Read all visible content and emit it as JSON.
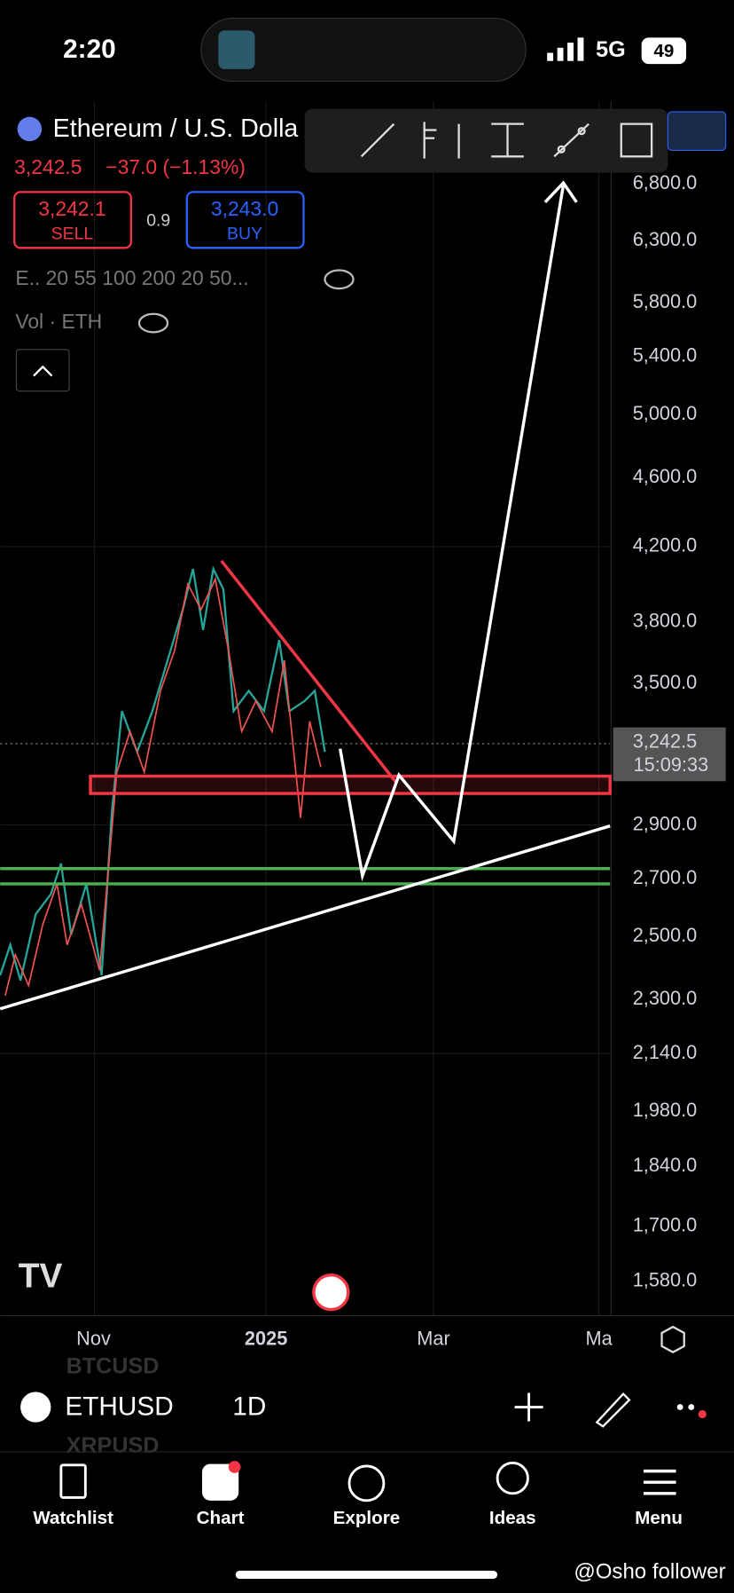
{
  "status": {
    "time": "2:20",
    "network": "5G",
    "battery": "49"
  },
  "header": {
    "title": "Ethereum / U.S. Dolla",
    "price": "3,242.5",
    "change": "−37.0 (−1.13%)",
    "sell_price": "3,242.1",
    "sell": "SELL",
    "spread": "0.9",
    "buy_price": "3,243.0",
    "buy": "BUY",
    "indicators": "E.. 20 55 100 200 20 50...",
    "volume": "Vol · ETH"
  },
  "price_axis": [
    "6,800.0",
    "6,300.0",
    "5,800.0",
    "5,400.0",
    "5,000.0",
    "4,600.0",
    "4,200.0",
    "3,800.0",
    "3,500.0",
    "2,900.0",
    "2,700.0",
    "2,500.0",
    "2,300.0",
    "2,140.0",
    "1,980.0",
    "1,840.0",
    "1,700.0",
    "1,580.0"
  ],
  "current": {
    "price": "3,242.5",
    "countdown": "15:09:33"
  },
  "time_axis": [
    "Nov",
    "2025",
    "Mar",
    "Ma"
  ],
  "symbol_bar": {
    "symbol": "ETHUSD",
    "interval": "1D",
    "ghost_above": "BTCUSD",
    "ghost_below": "XRPUSD"
  },
  "nav": [
    "Watchlist",
    "Chart",
    "Explore",
    "Ideas",
    "Menu"
  ],
  "watermark": "@Osho follower"
}
